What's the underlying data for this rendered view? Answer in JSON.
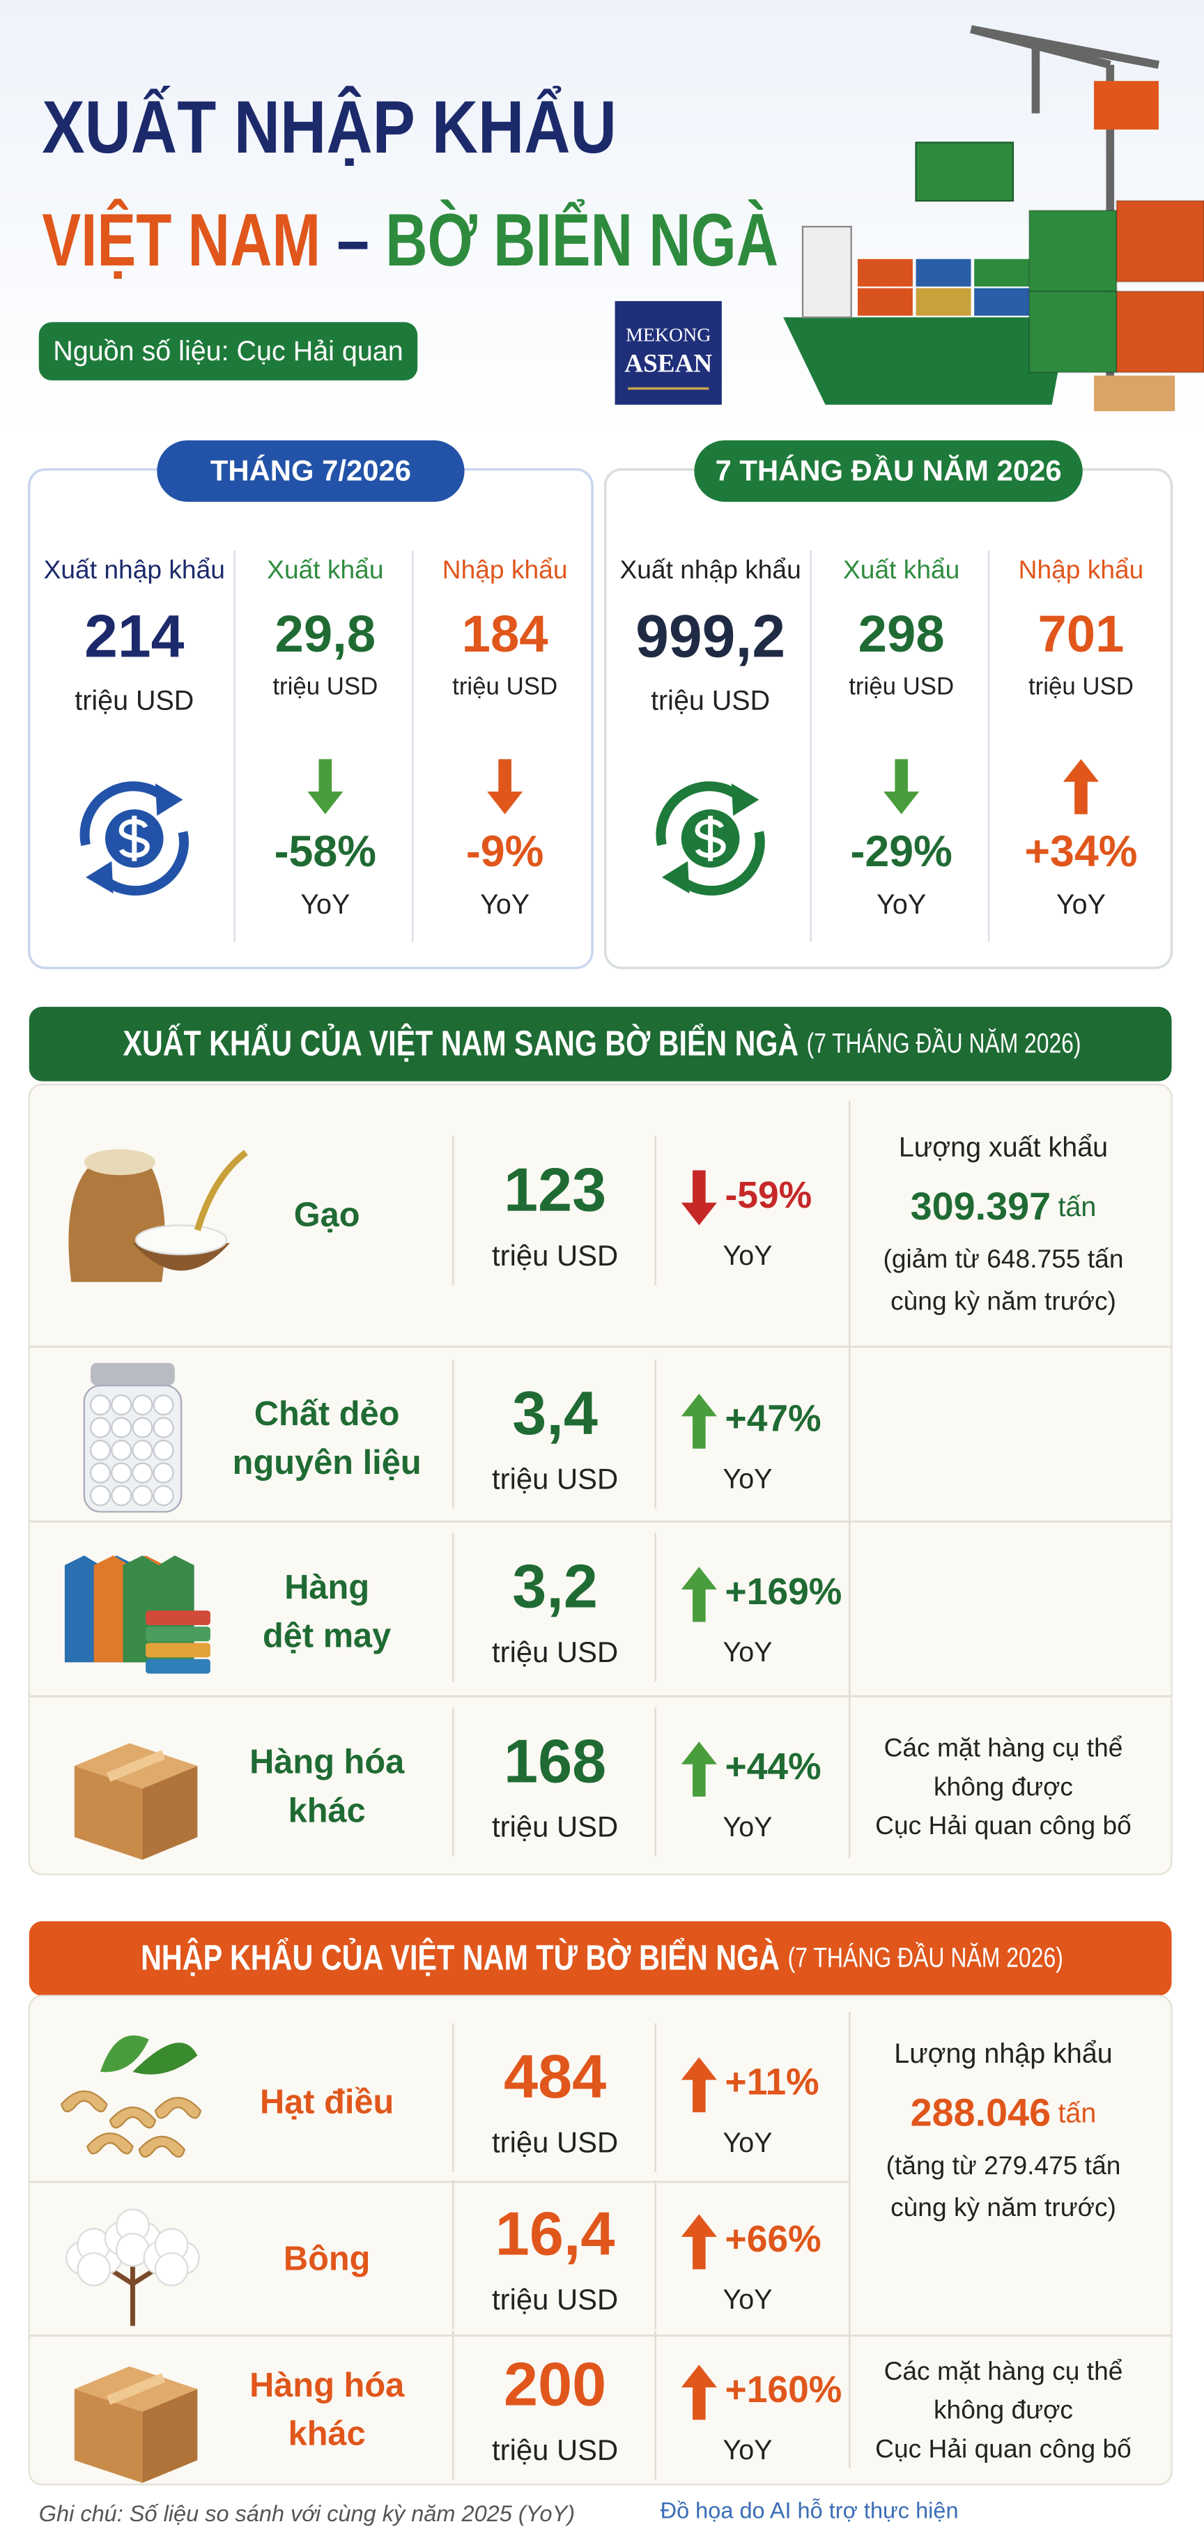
{
  "header": {
    "title_line1": "XUẤT NHẬP KHẨU",
    "title_line2": [
      "VIỆT NAM",
      "–",
      "BỜ BIỂN NGÀ"
    ],
    "source": "Nguồn số liệu: Cục Hải quan",
    "logo": [
      "MEKONG",
      "ASEAN"
    ]
  },
  "summary": [
    {
      "title": "THÁNG 7/2026",
      "stats": [
        {
          "label": "Xuất nhập khẩu",
          "value": "214",
          "unit": "triệu USD"
        },
        {
          "label": "Xuất khẩu",
          "value": "29,8",
          "unit": "triệu USD",
          "change": "-58%",
          "note": "YoY"
        },
        {
          "label": "Nhập khẩu",
          "value": "184",
          "unit": "triệu USD",
          "change": "-9%",
          "note": "YoY"
        }
      ]
    },
    {
      "title": "7 THÁNG ĐẦU NĂM 2026",
      "stats": [
        {
          "label": "Xuất nhập khẩu",
          "value": "999,2",
          "unit": "triệu USD"
        },
        {
          "label": "Xuất khẩu",
          "value": "298",
          "unit": "triệu USD",
          "change": "-29%",
          "note": "YoY"
        },
        {
          "label": "Nhập khẩu",
          "value": "701",
          "unit": "triệu USD",
          "change": "+34%",
          "note": "YoY"
        }
      ]
    }
  ],
  "exports": {
    "title": "XUẤT KHẨU CỦA VIỆT NAM SANG BỜ BIỂN NGÀ",
    "period": "(7 THÁNG ĐẦU NĂM 2026)",
    "rows": [
      {
        "name": [
          "Gạo"
        ],
        "value": "123",
        "unit": "triệu USD",
        "change": "-59%",
        "note": "YoY"
      },
      {
        "name": [
          "Chất dẻo",
          "nguyên liệu"
        ],
        "value": "3,4",
        "unit": "triệu USD",
        "change": "+47%",
        "note": "YoY"
      },
      {
        "name": [
          "Hàng",
          "dệt may"
        ],
        "value": "3,2",
        "unit": "triệu USD",
        "change": "+169%",
        "note": "YoY"
      },
      {
        "name": [
          "Hàng hóa",
          "khác"
        ],
        "value": "168",
        "unit": "triệu USD",
        "change": "+44%",
        "note": "YoY"
      }
    ],
    "volume": {
      "label": "Lượng xuất khẩu",
      "value": "309.397",
      "unit": "tấn",
      "lines": [
        "(giảm từ 648.755 tấn",
        "cùng kỳ năm trước)"
      ]
    },
    "other_note": [
      "Các mặt hàng cụ thể",
      "không được",
      "Cục Hải quan công bố"
    ]
  },
  "imports": {
    "title": "NHẬP KHẨU CỦA VIỆT NAM TỪ BỜ BIỂN NGÀ",
    "period": "(7 THÁNG ĐẦU NĂM 2026)",
    "rows": [
      {
        "name": [
          "Hạt điều"
        ],
        "value": "484",
        "unit": "triệu USD",
        "change": "+11%",
        "note": "YoY"
      },
      {
        "name": [
          "Bông"
        ],
        "value": "16,4",
        "unit": "triệu USD",
        "change": "+66%",
        "note": "YoY"
      },
      {
        "name": [
          "Hàng hóa",
          "khác"
        ],
        "value": "200",
        "unit": "triệu USD",
        "change": "+160%",
        "note": "YoY"
      }
    ],
    "volume": {
      "label": "Lượng nhập khẩu",
      "value": "288.046",
      "unit": "tấn",
      "lines": [
        "(tăng từ 279.475 tấn",
        "cùng kỳ năm trước)"
      ]
    },
    "other_note": [
      "Các mặt hàng cụ thể",
      "không được",
      "Cục Hải quan công bố"
    ]
  },
  "footer": {
    "note": "Ghi chú: Số liệu so sánh với cùng kỳ năm 2025 (YoY)",
    "credit": "Đồ họa do AI hỗ trợ thực hiện"
  }
}
